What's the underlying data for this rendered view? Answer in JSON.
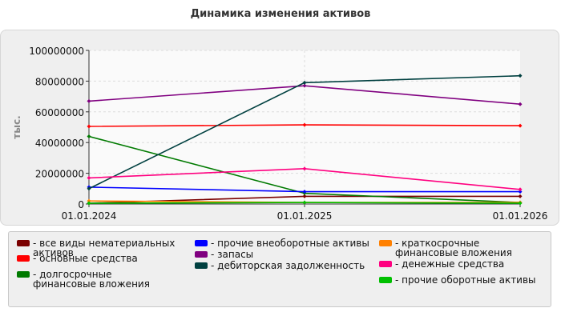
{
  "chart_data": {
    "type": "line",
    "title": "Динамика изменения активов",
    "ylabel": "тыс.",
    "xlabel": "",
    "x": [
      "01.01.2024",
      "01.01.2025",
      "01.01.2026"
    ],
    "ylim": [
      0,
      100000000
    ],
    "yticks": [
      "0",
      "20000000",
      "40000000",
      "60000000",
      "80000000",
      "100000000"
    ],
    "grid": true,
    "legend_position": "bottom",
    "series": [
      {
        "name": "все виды нематериальных активов",
        "color": "#7a0000",
        "values": [
          500000,
          5000000,
          5000000
        ]
      },
      {
        "name": "основные средства",
        "color": "#ff0000",
        "values": [
          50500000,
          51500000,
          51000000
        ]
      },
      {
        "name": "долгосрочные финансовые вложения",
        "color": "#007a00",
        "values": [
          44000000,
          7000000,
          1000000
        ]
      },
      {
        "name": "прочие внеоборотные активы",
        "color": "#0000ff",
        "values": [
          11000000,
          8000000,
          8000000
        ]
      },
      {
        "name": "запасы",
        "color": "#800080",
        "values": [
          67000000,
          77000000,
          65000000
        ]
      },
      {
        "name": "дебиторская задолженность",
        "color": "#004040",
        "values": [
          10000000,
          79000000,
          83500000
        ]
      },
      {
        "name": "краткосрочные финансовые вложения",
        "color": "#ff8000",
        "values": [
          2000000,
          1000000,
          1000000
        ]
      },
      {
        "name": "денежные средства",
        "color": "#ff0080",
        "values": [
          17000000,
          23000000,
          9500000
        ]
      },
      {
        "name": "прочие оборотные активы",
        "color": "#00c000",
        "values": [
          500000,
          1000000,
          500000
        ]
      }
    ]
  }
}
